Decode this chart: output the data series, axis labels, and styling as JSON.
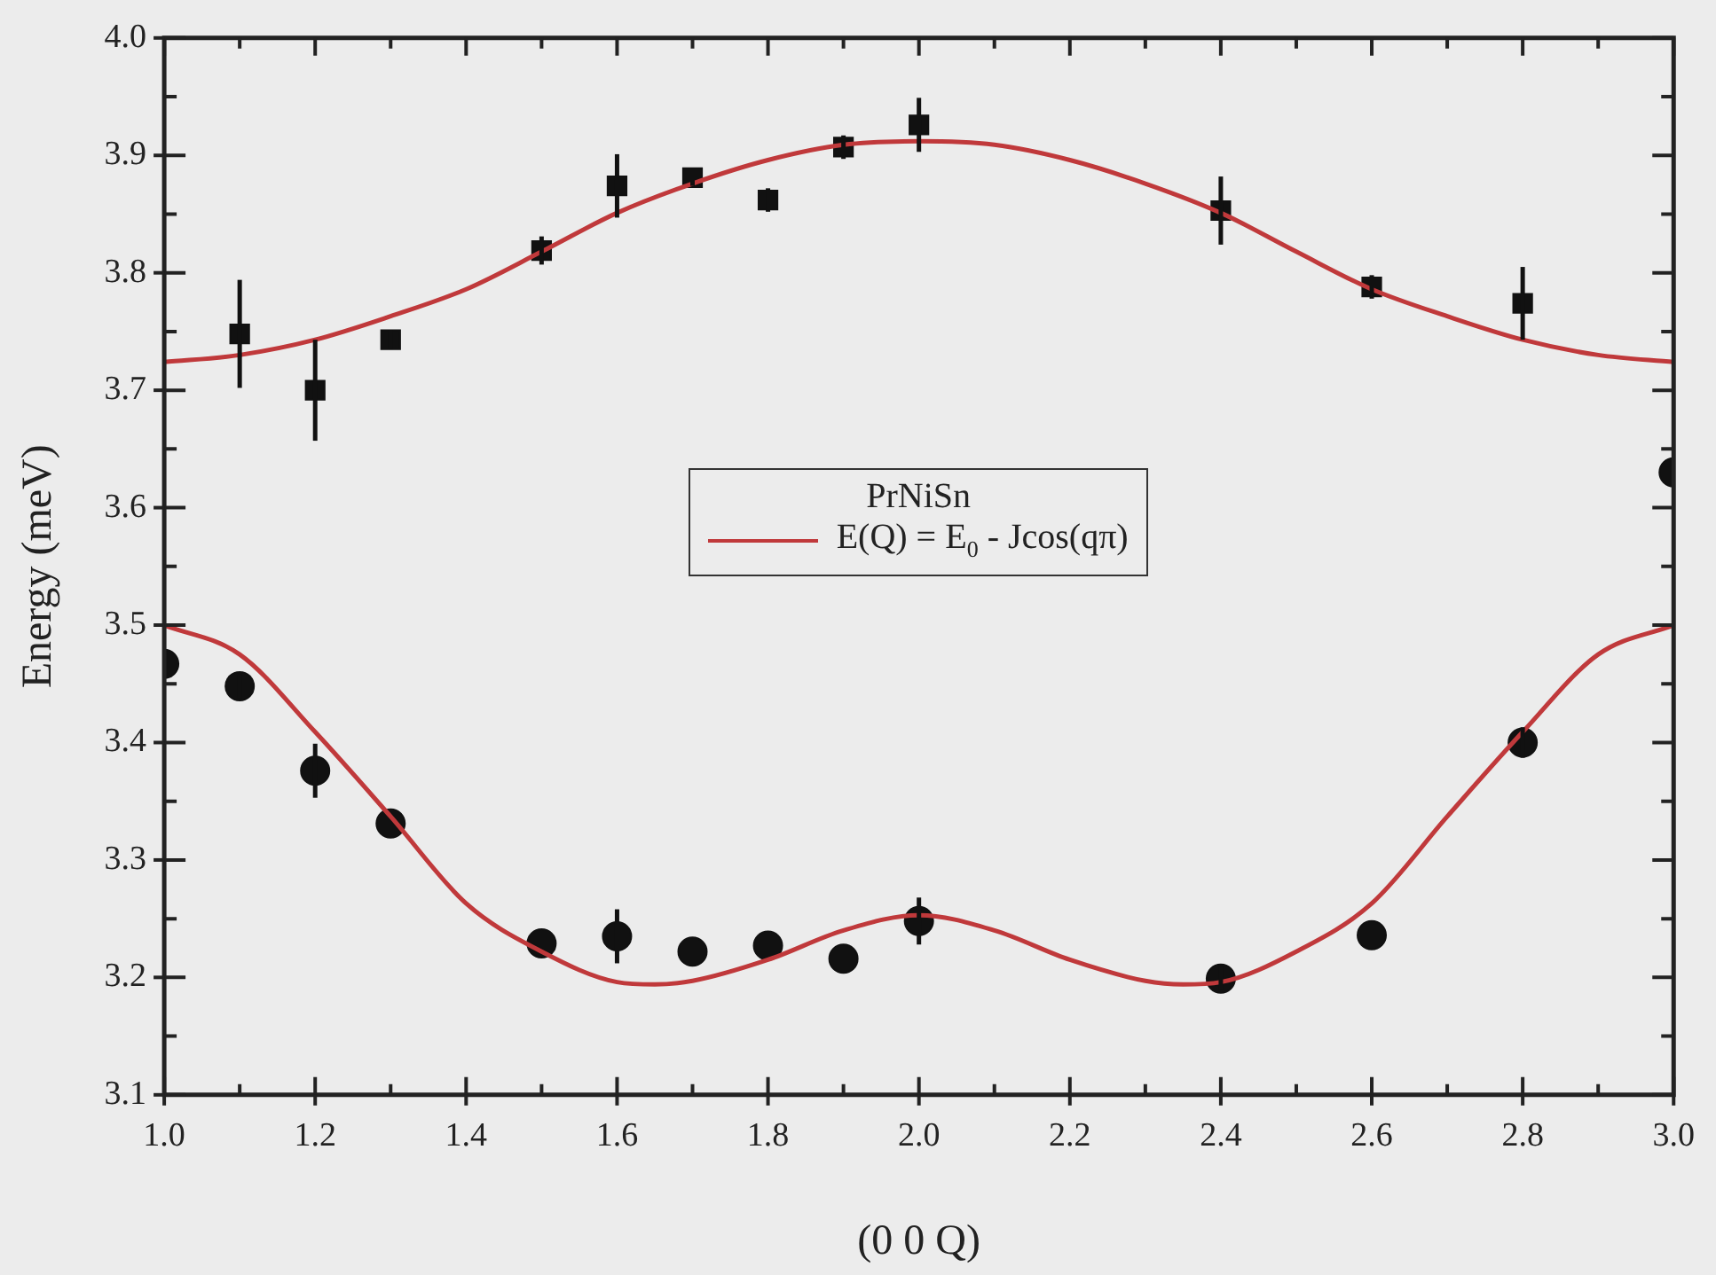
{
  "chart_data": {
    "type": "scatter",
    "xlabel": "(0 0 Q)",
    "ylabel": "Energy (meV)",
    "legend_title": "PrNiSn",
    "legend": "center",
    "grid": false,
    "xlim": [
      1.0,
      3.0
    ],
    "ylim": [
      3.1,
      4.0
    ],
    "xticks": [
      {
        "value": 1.0,
        "label": "1.0"
      },
      {
        "value": 1.1,
        "label": null
      },
      {
        "value": 1.2,
        "label": "1.2"
      },
      {
        "value": 1.3,
        "label": null
      },
      {
        "value": 1.4,
        "label": "1.4"
      },
      {
        "value": 1.5,
        "label": null
      },
      {
        "value": 1.6,
        "label": "1.6"
      },
      {
        "value": 1.7,
        "label": null
      },
      {
        "value": 1.8,
        "label": "1.8"
      },
      {
        "value": 1.9,
        "label": null
      },
      {
        "value": 2.0,
        "label": "2.0"
      },
      {
        "value": 2.1,
        "label": null
      },
      {
        "value": 2.2,
        "label": "2.2"
      },
      {
        "value": 2.3,
        "label": null
      },
      {
        "value": 2.4,
        "label": "2.4"
      },
      {
        "value": 2.5,
        "label": null
      },
      {
        "value": 2.6,
        "label": "2.6"
      },
      {
        "value": 2.7,
        "label": null
      },
      {
        "value": 2.8,
        "label": "2.8"
      },
      {
        "value": 2.9,
        "label": null
      },
      {
        "value": 3.0,
        "label": "3.0"
      }
    ],
    "yticks": [
      {
        "value": 3.1,
        "label": "3.1"
      },
      {
        "value": 3.15,
        "label": null
      },
      {
        "value": 3.2,
        "label": "3.2"
      },
      {
        "value": 3.25,
        "label": null
      },
      {
        "value": 3.3,
        "label": "3.3"
      },
      {
        "value": 3.35,
        "label": null
      },
      {
        "value": 3.4,
        "label": "3.4"
      },
      {
        "value": 3.45,
        "label": null
      },
      {
        "value": 3.5,
        "label": "3.5"
      },
      {
        "value": 3.55,
        "label": null
      },
      {
        "value": 3.6,
        "label": "3.6"
      },
      {
        "value": 3.65,
        "label": null
      },
      {
        "value": 3.7,
        "label": "3.7"
      },
      {
        "value": 3.75,
        "label": null
      },
      {
        "value": 3.8,
        "label": "3.8"
      },
      {
        "value": 3.85,
        "label": null
      },
      {
        "value": 3.9,
        "label": "3.9"
      },
      {
        "value": 3.95,
        "label": null
      },
      {
        "value": 4.0,
        "label": "4.0"
      }
    ],
    "series": [
      {
        "marker": "square",
        "color": "#111111",
        "x": [
          1.1,
          1.2,
          1.3,
          1.5,
          1.6,
          1.7,
          1.8,
          1.9,
          2.0,
          2.4,
          2.6,
          2.8
        ],
        "values": [
          3.748,
          3.7,
          3.743,
          3.819,
          3.874,
          3.881,
          3.862,
          3.907,
          3.926,
          3.853,
          3.788,
          3.774
        ],
        "errors": [
          0.046,
          0.043,
          0.008,
          0.012,
          0.027,
          0.007,
          0.01,
          0.01,
          0.023,
          0.029,
          0.01,
          0.031
        ]
      },
      {
        "marker": "circle",
        "color": "#111111",
        "x": [
          1.0,
          1.1,
          1.2,
          1.3,
          1.5,
          1.6,
          1.7,
          1.8,
          1.9,
          2.0,
          2.4,
          2.6,
          2.8,
          3.0
        ],
        "values": [
          3.467,
          3.448,
          3.376,
          3.331,
          3.229,
          3.235,
          3.222,
          3.227,
          3.216,
          3.248,
          3.199,
          3.236,
          3.4,
          3.63
        ],
        "errors": [
          null,
          0.01,
          0.023,
          null,
          null,
          0.023,
          null,
          null,
          null,
          0.02,
          0.01,
          null,
          0.013,
          null
        ]
      },
      {
        "type": "line",
        "name": "E(Q) = E$_{0}$ -  Jcos(qπ)",
        "color": "#c0393b",
        "x": [
          1.0,
          1.1,
          1.2,
          1.3,
          1.4,
          1.5,
          1.6,
          1.7,
          1.8,
          1.9,
          2.0,
          2.1,
          2.2,
          2.3,
          2.4,
          2.5,
          2.6,
          2.7,
          2.8,
          2.9,
          3.0
        ],
        "values": [
          3.724,
          3.73,
          3.743,
          3.763,
          3.786,
          3.818,
          3.851,
          3.876,
          3.896,
          3.909,
          3.912,
          3.909,
          3.896,
          3.876,
          3.851,
          3.818,
          3.786,
          3.763,
          3.743,
          3.73,
          3.724
        ]
      },
      {
        "type": "line",
        "color": "#c0393b",
        "x": [
          1.0,
          1.1,
          1.2,
          1.3,
          1.4,
          1.5,
          1.6,
          1.65,
          1.7,
          1.8,
          1.9,
          2.0,
          2.1,
          2.2,
          2.3,
          2.35,
          2.4,
          2.5,
          2.6,
          2.7,
          2.8,
          2.9,
          3.0
        ],
        "values": [
          3.5,
          3.475,
          3.409,
          3.337,
          3.263,
          3.222,
          3.196,
          3.194,
          3.197,
          3.215,
          3.24,
          3.253,
          3.24,
          3.215,
          3.197,
          3.194,
          3.196,
          3.222,
          3.263,
          3.337,
          3.409,
          3.475,
          3.5
        ]
      }
    ]
  }
}
